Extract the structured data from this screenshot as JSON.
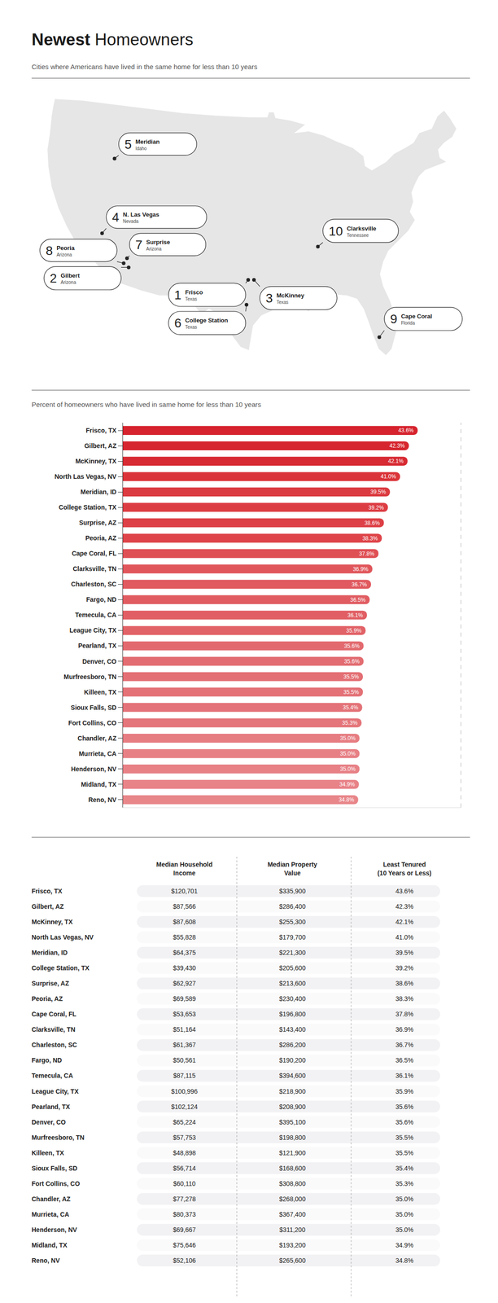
{
  "header": {
    "title": {
      "bold": "Newest",
      "text": "Homeowners"
    },
    "subtitle": "Cities where Americans have lived in the same home for less than 10 years"
  },
  "map": {
    "markers": [
      {
        "rank": 1,
        "city": "Frisco",
        "state": "Texas"
      },
      {
        "rank": 2,
        "city": "Gilbert",
        "state": "Arizona"
      },
      {
        "rank": 3,
        "city": "McKinney",
        "state": "Texas"
      },
      {
        "rank": 4,
        "city": "N. Las Vegas",
        "state": "Nevada"
      },
      {
        "rank": 5,
        "city": "Meridian",
        "state": "Idaho"
      },
      {
        "rank": 6,
        "city": "College Station",
        "state": "Texas"
      },
      {
        "rank": 7,
        "city": "Surprise",
        "state": "Arizona"
      },
      {
        "rank": 8,
        "city": "Peoria",
        "state": "Arizona"
      },
      {
        "rank": 9,
        "city": "Cape Coral",
        "state": "Florida"
      },
      {
        "rank": 10,
        "city": "Clarksville",
        "state": "Tennessee"
      }
    ]
  },
  "chart_data": {
    "type": "bar",
    "orientation": "horizontal",
    "title": "Percent of homeowners who have lived in same home for less than 10 years",
    "categories": [
      "Frisco, TX",
      "Gilbert, AZ",
      "McKinney, TX",
      "North Las Vegas, NV",
      "Meridian, ID",
      "College Station, TX",
      "Surprise, AZ",
      "Peoria, AZ",
      "Cape Coral, FL",
      "Clarksville, TN",
      "Charleston, SC",
      "Fargo, ND",
      "Temecula, CA",
      "League City, TX",
      "Pearland, TX",
      "Denver, CO",
      "Murfreesboro, TN",
      "Killeen, TX",
      "Sioux Falls, SD",
      "Fort Collins, CO",
      "Chandler, AZ",
      "Murrieta, CA",
      "Henderson, NV",
      "Midland, TX",
      "Reno, NV"
    ],
    "values": [
      43.6,
      42.3,
      42.1,
      41.0,
      39.5,
      39.2,
      38.6,
      38.3,
      37.8,
      36.9,
      36.7,
      36.5,
      36.1,
      35.9,
      35.6,
      35.6,
      35.5,
      35.5,
      35.4,
      35.3,
      35.0,
      35.0,
      35.0,
      34.9,
      34.8
    ],
    "value_labels": [
      "43.6%",
      "42.3%",
      "42.1%",
      "41.0%",
      "39.5%",
      "39.2%",
      "38.6%",
      "38.3%",
      "37.8%",
      "36.9%",
      "36.7%",
      "36.5%",
      "36.1%",
      "35.9%",
      "35.6%",
      "35.6%",
      "35.5%",
      "35.5%",
      "35.4%",
      "35.3%",
      "35.0%",
      "35.0%",
      "35.0%",
      "34.9%",
      "34.8%"
    ],
    "colors": [
      "#d6232e",
      "#d6262f",
      "#d72a33",
      "#da3339",
      "#db3a40",
      "#dc3d43",
      "#dd4046",
      "#de4449",
      "#df5055",
      "#e0565b",
      "#e05a5f",
      "#e05c61",
      "#e15f64",
      "#e16267",
      "#e26a6f",
      "#e26c71",
      "#e36f74",
      "#e37176",
      "#e37378",
      "#e4757a",
      "#e67d82",
      "#e78085",
      "#e78186",
      "#e88388",
      "#e8868a"
    ],
    "xlim": [
      0,
      50
    ],
    "xticks": [],
    "grid": false,
    "data_labels": true,
    "tick_labels": "y"
  },
  "table": {
    "columns": [
      [
        "Median Household",
        "Income"
      ],
      [
        "Median Property",
        "Value"
      ],
      [
        "Least Tenured",
        "(10 Years or Less)"
      ]
    ],
    "rows": [
      [
        "Frisco, TX",
        "$120,701",
        "$335,900",
        "43.6%"
      ],
      [
        "Gilbert, AZ",
        "$87,566",
        "$286,400",
        "42.3%"
      ],
      [
        "McKinney, TX",
        "$87,608",
        "$255,300",
        "42.1%"
      ],
      [
        "North Las Vegas, NV",
        "$55,828",
        "$179,700",
        "41.0%"
      ],
      [
        "Meridian, ID",
        "$64,375",
        "$221,300",
        "39.5%"
      ],
      [
        "College Station, TX",
        "$39,430",
        "$205,600",
        "39.2%"
      ],
      [
        "Surprise, AZ",
        "$62,927",
        "$213,600",
        "38.6%"
      ],
      [
        "Peoria, AZ",
        "$69,589",
        "$230,400",
        "38.3%"
      ],
      [
        "Cape Coral, FL",
        "$53,653",
        "$196,800",
        "37.8%"
      ],
      [
        "Clarksville, TN",
        "$51,164",
        "$143,400",
        "36.9%"
      ],
      [
        "Charleston, SC",
        "$61,367",
        "$286,200",
        "36.7%"
      ],
      [
        "Fargo, ND",
        "$50,561",
        "$190,200",
        "36.5%"
      ],
      [
        "Temecula, CA",
        "$87,115",
        "$394,600",
        "36.1%"
      ],
      [
        "League City, TX",
        "$100,996",
        "$218,900",
        "35.9%"
      ],
      [
        "Pearland, TX",
        "$102,124",
        "$208,900",
        "35.6%"
      ],
      [
        "Denver, CO",
        "$65,224",
        "$395,100",
        "35.6%"
      ],
      [
        "Murfreesboro, TN",
        "$57,753",
        "$198,800",
        "35.5%"
      ],
      [
        "Killeen, TX",
        "$48,898",
        "$121,900",
        "35.5%"
      ],
      [
        "Sioux Falls, SD",
        "$56,714",
        "$168,600",
        "35.4%"
      ],
      [
        "Fort Collins, CO",
        "$60,110",
        "$308,800",
        "35.3%"
      ],
      [
        "Chandler, AZ",
        "$77,278",
        "$268,000",
        "35.0%"
      ],
      [
        "Murrieta, CA",
        "$80,373",
        "$367,400",
        "35.0%"
      ],
      [
        "Henderson, NV",
        "$69,667",
        "$311,200",
        "35.0%"
      ],
      [
        "Midland, TX",
        "$75,646",
        "$193,200",
        "34.9%"
      ],
      [
        "Reno, NV",
        "$52,106",
        "$265,600",
        "34.8%"
      ]
    ]
  }
}
